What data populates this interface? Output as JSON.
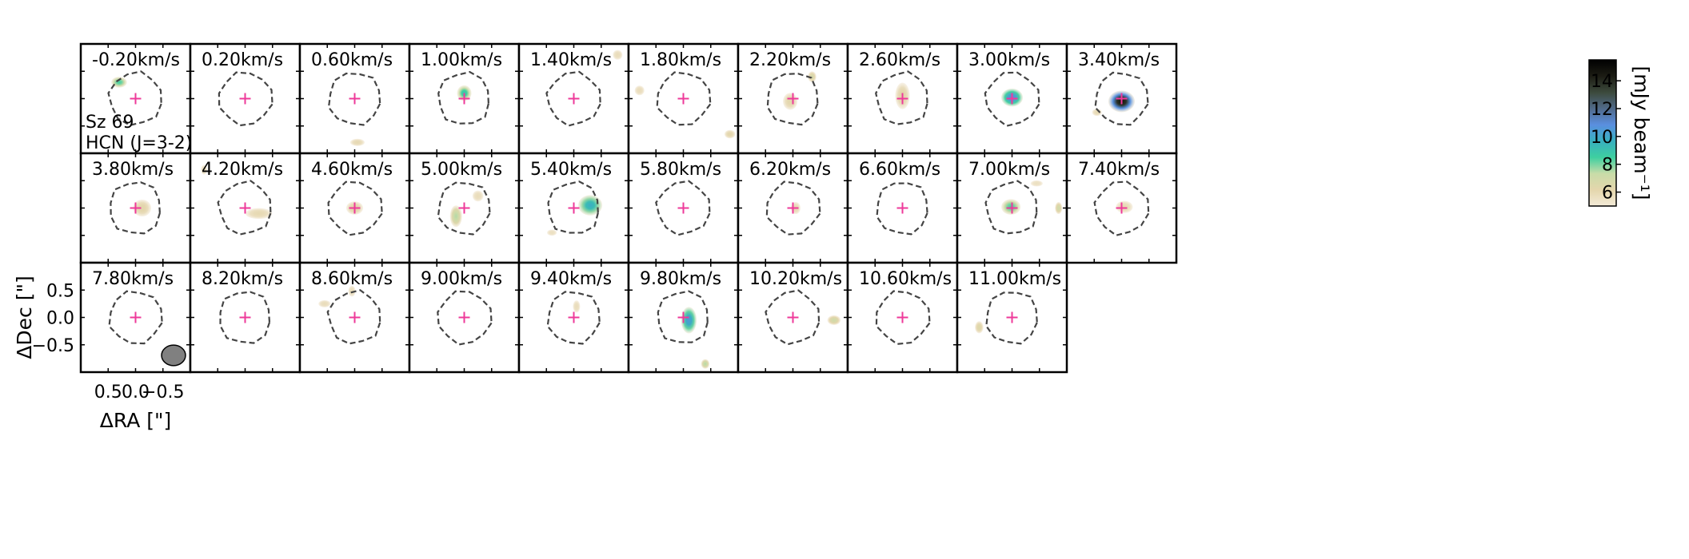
{
  "chart_data": {
    "type": "heatmap",
    "source": "Sz 69",
    "line": "HCN (J=3-2)",
    "velocity_unit": "km/s",
    "channels": [
      {
        "label": "-0.20km/s",
        "v": -0.2,
        "blobs": [
          {
            "x": 0.3,
            "y": 0.3,
            "a": 0.13,
            "b": 0.09,
            "peak": 8.5
          }
        ]
      },
      {
        "label": "0.20km/s",
        "v": 0.2,
        "blobs": []
      },
      {
        "label": "0.60km/s",
        "v": 0.6,
        "blobs": [
          {
            "x": -0.05,
            "y": -0.8,
            "a": 0.12,
            "b": 0.06,
            "peak": 6.0
          }
        ]
      },
      {
        "label": "1.00km/s",
        "v": 1.0,
        "blobs": [
          {
            "x": 0.0,
            "y": 0.1,
            "a": 0.12,
            "b": 0.13,
            "peak": 9.0
          }
        ]
      },
      {
        "label": "1.40km/s",
        "v": 1.4,
        "blobs": [
          {
            "x": -0.8,
            "y": 0.8,
            "a": 0.08,
            "b": 0.08,
            "peak": 5.8
          }
        ]
      },
      {
        "label": "1.80km/s",
        "v": 1.8,
        "blobs": [
          {
            "x": 0.8,
            "y": 0.15,
            "a": 0.08,
            "b": 0.08,
            "peak": 5.8
          },
          {
            "x": -0.85,
            "y": -0.65,
            "a": 0.09,
            "b": 0.07,
            "peak": 6.2
          }
        ]
      },
      {
        "label": "2.20km/s",
        "v": 2.2,
        "blobs": [
          {
            "x": 0.05,
            "y": -0.05,
            "a": 0.12,
            "b": 0.14,
            "peak": 6.2
          },
          {
            "x": -0.35,
            "y": 0.4,
            "a": 0.07,
            "b": 0.09,
            "peak": 6.8
          }
        ]
      },
      {
        "label": "2.60km/s",
        "v": 2.6,
        "blobs": [
          {
            "x": 0.0,
            "y": 0.05,
            "a": 0.12,
            "b": 0.22,
            "peak": 6.3
          }
        ]
      },
      {
        "label": "3.00km/s",
        "v": 3.0,
        "blobs": [
          {
            "x": 0.0,
            "y": 0.02,
            "a": 0.18,
            "b": 0.15,
            "peak": 11.0
          }
        ]
      },
      {
        "label": "3.40km/s",
        "v": 3.4,
        "blobs": [
          {
            "x": 0.0,
            "y": -0.05,
            "a": 0.22,
            "b": 0.18,
            "peak": 15.0
          },
          {
            "x": 0.45,
            "y": -0.25,
            "a": 0.08,
            "b": 0.06,
            "peak": 6.0
          }
        ]
      },
      {
        "label": "3.80km/s",
        "v": 3.8,
        "blobs": [
          {
            "x": -0.12,
            "y": 0.0,
            "a": 0.15,
            "b": 0.14,
            "peak": 6.3
          }
        ]
      },
      {
        "label": "4.20km/s",
        "v": 4.2,
        "blobs": [
          {
            "x": -0.25,
            "y": -0.1,
            "a": 0.22,
            "b": 0.09,
            "peak": 6.0
          },
          {
            "x": 0.75,
            "y": 0.7,
            "a": 0.05,
            "b": 0.08,
            "peak": 5.8
          }
        ]
      },
      {
        "label": "4.60km/s",
        "v": 4.6,
        "blobs": [
          {
            "x": 0.0,
            "y": 0.0,
            "a": 0.14,
            "b": 0.11,
            "peak": 6.4
          }
        ]
      },
      {
        "label": "5.00km/s",
        "v": 5.0,
        "blobs": [
          {
            "x": 0.15,
            "y": -0.15,
            "a": 0.1,
            "b": 0.18,
            "peak": 7.5
          },
          {
            "x": -0.25,
            "y": 0.22,
            "a": 0.09,
            "b": 0.09,
            "peak": 5.8
          }
        ]
      },
      {
        "label": "5.40km/s",
        "v": 5.4,
        "blobs": [
          {
            "x": -0.3,
            "y": 0.05,
            "a": 0.2,
            "b": 0.17,
            "peak": 9.8
          },
          {
            "x": 0.4,
            "y": -0.45,
            "a": 0.08,
            "b": 0.05,
            "peak": 5.6
          }
        ]
      },
      {
        "label": "5.80km/s",
        "v": 5.8,
        "blobs": []
      },
      {
        "label": "6.20km/s",
        "v": 6.2,
        "blobs": [
          {
            "x": -0.05,
            "y": 0.0,
            "a": 0.08,
            "b": 0.1,
            "peak": 6.0
          }
        ]
      },
      {
        "label": "6.60km/s",
        "v": 6.6,
        "blobs": []
      },
      {
        "label": "7.00km/s",
        "v": 7.0,
        "blobs": [
          {
            "x": 0.02,
            "y": 0.02,
            "a": 0.16,
            "b": 0.13,
            "peak": 8.5
          },
          {
            "x": -0.85,
            "y": 0.0,
            "a": 0.06,
            "b": 0.1,
            "peak": 7.0
          },
          {
            "x": -0.45,
            "y": 0.45,
            "a": 0.1,
            "b": 0.05,
            "peak": 5.6
          }
        ]
      },
      {
        "label": "7.40km/s",
        "v": 7.4,
        "blobs": [
          {
            "x": -0.05,
            "y": 0.02,
            "a": 0.14,
            "b": 0.1,
            "peak": 6.0
          }
        ]
      },
      {
        "label": "7.80km/s",
        "v": 7.8,
        "blobs": []
      },
      {
        "label": "8.20km/s",
        "v": 8.2,
        "blobs": []
      },
      {
        "label": "8.60km/s",
        "v": 8.6,
        "blobs": [
          {
            "x": 0.55,
            "y": 0.25,
            "a": 0.1,
            "b": 0.06,
            "peak": 5.8
          },
          {
            "x": 0.05,
            "y": 0.48,
            "a": 0.06,
            "b": 0.09,
            "peak": 5.8
          }
        ]
      },
      {
        "label": "9.00km/s",
        "v": 9.0,
        "blobs": []
      },
      {
        "label": "9.40km/s",
        "v": 9.4,
        "blobs": [
          {
            "x": -0.05,
            "y": 0.2,
            "a": 0.06,
            "b": 0.1,
            "peak": 5.8
          }
        ]
      },
      {
        "label": "9.80km/s",
        "v": 9.8,
        "blobs": [
          {
            "x": -0.1,
            "y": -0.05,
            "a": 0.13,
            "b": 0.22,
            "peak": 10.5
          },
          {
            "x": -0.4,
            "y": -0.85,
            "a": 0.07,
            "b": 0.08,
            "peak": 7.5
          }
        ]
      },
      {
        "label": "10.20km/s",
        "v": 10.2,
        "blobs": [
          {
            "x": -0.75,
            "y": -0.05,
            "a": 0.11,
            "b": 0.08,
            "peak": 7.0
          }
        ]
      },
      {
        "label": "10.60km/s",
        "v": 10.6,
        "blobs": []
      },
      {
        "label": "11.00km/s",
        "v": 11.0,
        "blobs": [
          {
            "x": 0.6,
            "y": -0.18,
            "a": 0.07,
            "b": 0.1,
            "peak": 6.5
          }
        ]
      }
    ],
    "mask": {
      "shape": "dashed-contour",
      "radius_arcsec": 0.48
    },
    "center_marker": {
      "x": 0,
      "y": 0,
      "color": "#ee3a9a"
    },
    "beam": {
      "major_arcsec": 0.28,
      "minor_arcsec": 0.24
    },
    "xlabel": "ΔRA [\"]",
    "ylabel": "ΔDec [\"]",
    "xticks": [
      0.5,
      0.0,
      -0.5
    ],
    "xtick_labels": [
      "0.5",
      "0.0",
      "−0.5"
    ],
    "yticks": [
      0.5,
      0.0,
      -0.5
    ],
    "ytick_labels": [
      "0.5",
      "0.0",
      "−0.5"
    ],
    "xlim": [
      1.0,
      -1.0
    ],
    "ylim": [
      -1.0,
      1.0
    ],
    "colorbar": {
      "label": "[mJy beam⁻¹]",
      "ticks": [
        6,
        8,
        10,
        12,
        14
      ],
      "range": [
        5,
        15.5
      ],
      "colormap": [
        "#f3ead8",
        "#e4d6ac",
        "#c8dca8",
        "#3ecfa0",
        "#38b0c0",
        "#5a8fe0",
        "#506a8a",
        "#3c4a3c",
        "#1c1c14",
        "#000000"
      ]
    }
  }
}
